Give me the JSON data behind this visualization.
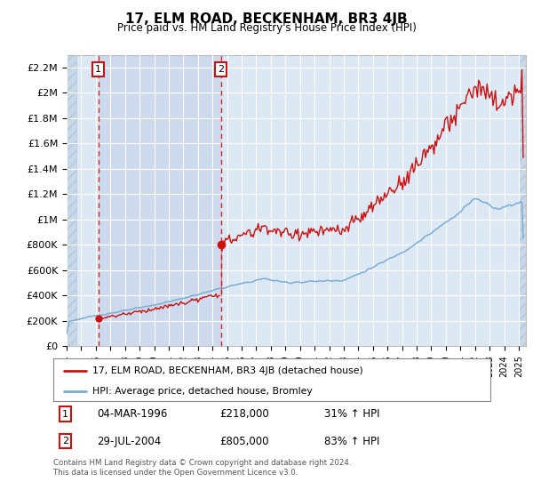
{
  "title": "17, ELM ROAD, BECKENHAM, BR3 4JB",
  "subtitle": "Price paid vs. HM Land Registry's House Price Index (HPI)",
  "hpi_color": "#7aadd4",
  "price_color": "#cc1111",
  "bg_plot": "#dde8f5",
  "bg_sale_region": "#cddaed",
  "grid_color": "#ffffff",
  "dashed_line_color": "#cc1111",
  "sale1_year": 1996.17,
  "sale1_price": 218000,
  "sale1_label": "1",
  "sale1_date": "04-MAR-1996",
  "sale1_pct": "31% ↑ HPI",
  "sale2_year": 2004.57,
  "sale2_price": 805000,
  "sale2_label": "2",
  "sale2_date": "29-JUL-2004",
  "sale2_pct": "83% ↑ HPI",
  "ylim_max": 2300000,
  "ylim_min": 0,
  "xmin": 1994.0,
  "xmax": 2025.5,
  "legend_line1": "17, ELM ROAD, BECKENHAM, BR3 4JB (detached house)",
  "legend_line2": "HPI: Average price, detached house, Bromley",
  "footer": "Contains HM Land Registry data © Crown copyright and database right 2024.\nThis data is licensed under the Open Government Licence v3.0.",
  "yticks": [
    0,
    200000,
    400000,
    600000,
    800000,
    1000000,
    1200000,
    1400000,
    1600000,
    1800000,
    2000000,
    2200000
  ],
  "ytick_labels": [
    "£0",
    "£200K",
    "£400K",
    "£600K",
    "£800K",
    "£1M",
    "£1.2M",
    "£1.4M",
    "£1.6M",
    "£1.8M",
    "£2M",
    "£2.2M"
  ]
}
